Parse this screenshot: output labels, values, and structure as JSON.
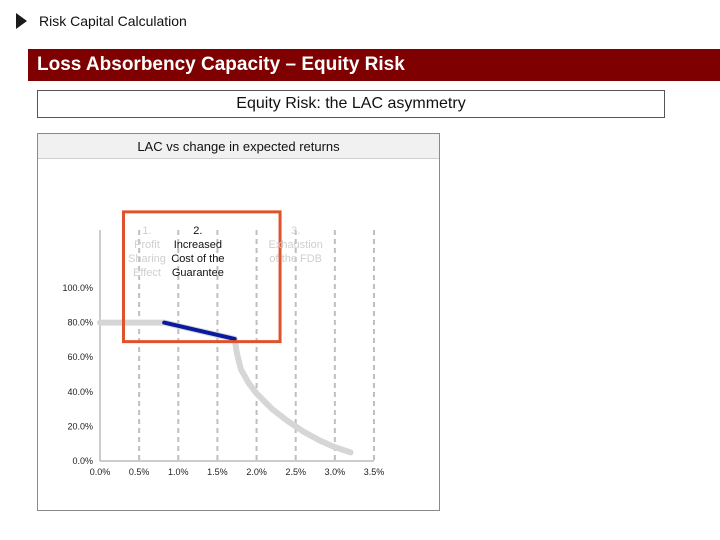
{
  "header": {
    "section_title": "Risk Capital Calculation"
  },
  "banner": {
    "title": "Loss Absorbency Capacity – Equity Risk"
  },
  "subtitle": {
    "text": "Equity Risk: the LAC asymmetry"
  },
  "colors": {
    "banner_bg": "#7f0000",
    "highlight_box": "#e0522b",
    "highlight_series": "#0a1a9e",
    "base_series": "#d6d6d6",
    "gridlines": "#bfbfbf",
    "phase_label_faded": "#cfcfcf",
    "phase_label_active": "#111111"
  },
  "chart_data": {
    "type": "line",
    "title": "LAC vs change in expected returns",
    "xlabel": "",
    "ylabel": "",
    "xlim": [
      0,
      3.5
    ],
    "ylim": [
      0,
      100
    ],
    "x_ticks": [
      "0.0%",
      "0.5%",
      "1.0%",
      "1.5%",
      "2.0%",
      "2.5%",
      "3.0%",
      "3.5%"
    ],
    "y_ticks": [
      "0.0%",
      "20.0%",
      "40.0%",
      "60.0%",
      "80.0%",
      "100.0%"
    ],
    "grid": "vertical dashed",
    "series": [
      {
        "style": "base",
        "x": [
          0.0,
          0.82,
          1.0,
          1.25,
          1.5,
          1.72,
          1.75,
          1.8,
          1.9,
          2.0,
          2.2,
          2.4,
          2.6,
          2.8,
          3.0,
          3.2
        ],
        "y": [
          80,
          80,
          78.1,
          75.5,
          72.9,
          70.6,
          62,
          53,
          45,
          39,
          30,
          23,
          17,
          12,
          8,
          5
        ]
      },
      {
        "style": "highlight",
        "x": [
          0.82,
          1.72
        ],
        "y": [
          80,
          70.6
        ]
      }
    ],
    "annotations": [
      {
        "label": [
          "1.",
          "Profit",
          "Sharing",
          "Effect"
        ],
        "x": 0.6,
        "emphasis": "faded"
      },
      {
        "label": [
          "2.",
          "Increased",
          "Cost of the",
          "Guarantee"
        ],
        "x": 1.25,
        "emphasis": "active"
      },
      {
        "label": [
          "3.",
          "Exhaustion",
          "of the FDB"
        ],
        "x": 2.5,
        "emphasis": "faded"
      }
    ],
    "highlight_region": {
      "x": [
        0.3,
        2.3
      ],
      "y": [
        69,
        144
      ]
    }
  }
}
